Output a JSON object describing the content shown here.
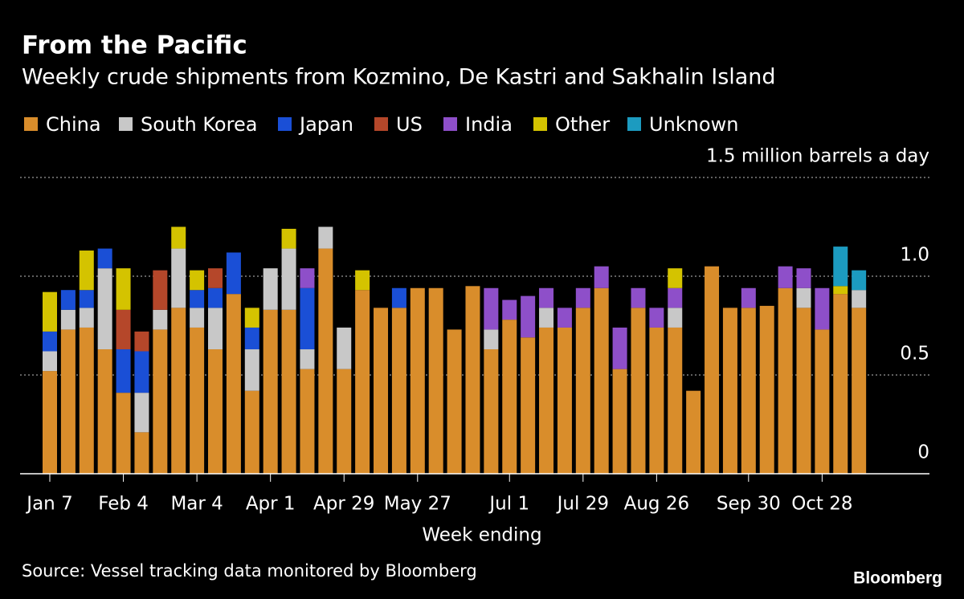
{
  "chart_data": {
    "type": "stacked-bar",
    "title": "From the Pacific",
    "subtitle": "Weekly crude shipments from Kozmino, De Kastri and Sakhalin Island",
    "x_label": "Week ending",
    "source": "Source: Vessel tracking data monitored by Bloomberg",
    "logo": "Bloomberg",
    "categories": [
      "Jan 7",
      null,
      null,
      null,
      "Feb 4",
      null,
      null,
      null,
      "Mar 4",
      null,
      null,
      null,
      "Apr 1",
      null,
      null,
      null,
      "Apr 29",
      null,
      null,
      null,
      "May 27",
      null,
      null,
      null,
      null,
      "Jul 1",
      null,
      null,
      null,
      "Jul 29",
      null,
      null,
      null,
      "Aug 26",
      null,
      null,
      null,
      null,
      "Sep 30",
      null,
      null,
      null,
      "Oct 28",
      null,
      null
    ],
    "ylim": [
      0,
      1.5
    ],
    "yticks": [
      0,
      0.5,
      {
        "value": 1,
        "label": "1.0"
      },
      {
        "value": 1.5,
        "label": "1.5 million barrels a day"
      }
    ],
    "grid": true,
    "series": [
      {
        "name": "China",
        "color": "#d98d2b",
        "values": [
          0.52,
          0.73,
          0.74,
          0.63,
          0.41,
          0.21,
          0.73,
          0.84,
          0.74,
          0.63,
          0.91,
          0.42,
          0.83,
          0.83,
          0.53,
          1.14,
          0.53,
          0.93,
          0.84,
          0.84,
          0.94,
          0.94,
          0.73,
          0.95,
          0.63,
          0.78,
          0.69,
          0.74,
          0.74,
          0.84,
          0.94,
          0.53,
          0.84,
          0.74,
          0.74,
          0.42,
          1.05,
          0.84,
          0.84,
          0.85,
          0.94,
          0.84,
          0.73,
          0.91,
          0.84
        ]
      },
      {
        "name": "South Korea",
        "color": "#c8c8c8",
        "values": [
          0.1,
          0.1,
          0.1,
          0.41,
          0,
          0.2,
          0.1,
          0.3,
          0.1,
          0.21,
          0,
          0.21,
          0.21,
          0.31,
          0.1,
          0.11,
          0.21,
          0,
          0,
          0,
          0,
          0,
          0,
          0,
          0.1,
          0,
          0,
          0.1,
          0,
          0,
          0,
          0,
          0,
          0,
          0.1,
          0,
          0,
          0,
          0,
          0,
          0,
          0.1,
          0,
          0,
          0.09
        ]
      },
      {
        "name": "Japan",
        "color": "#1a4fd6",
        "values": [
          0.1,
          0.1,
          0.09,
          0.1,
          0.22,
          0.21,
          0,
          0,
          0.09,
          0.1,
          0.21,
          0.11,
          0,
          0,
          0.31,
          0,
          0,
          0,
          0,
          0.1,
          0,
          0,
          0,
          0,
          0,
          0,
          0,
          0,
          0,
          0,
          0,
          0,
          0,
          0,
          0,
          0,
          0,
          0,
          0,
          0,
          0,
          0,
          0,
          0,
          0
        ]
      },
      {
        "name": "US",
        "color": "#b5472a",
        "values": [
          0,
          0,
          0,
          0,
          0.2,
          0.1,
          0.2,
          0,
          0,
          0.1,
          0,
          0,
          0,
          0,
          0,
          0,
          0,
          0,
          0,
          0,
          0,
          0,
          0,
          0,
          0,
          0,
          0,
          0,
          0,
          0,
          0,
          0,
          0,
          0,
          0,
          0,
          0,
          0,
          0,
          0,
          0,
          0,
          0,
          0,
          0
        ]
      },
      {
        "name": "India",
        "color": "#8e4fc9",
        "values": [
          0,
          0,
          0,
          0,
          0,
          0,
          0,
          0,
          0,
          0,
          0,
          0,
          0,
          0,
          0.1,
          0,
          0,
          0,
          0,
          0,
          0,
          0,
          0,
          0,
          0.21,
          0.1,
          0.21,
          0.1,
          0.1,
          0.1,
          0.11,
          0.21,
          0.1,
          0.1,
          0.1,
          0,
          0,
          0,
          0.1,
          0,
          0.11,
          0.1,
          0.21,
          0,
          0
        ]
      },
      {
        "name": "Other",
        "color": "#d4c300",
        "values": [
          0.2,
          0,
          0.2,
          0,
          0.21,
          0,
          0,
          0.11,
          0.1,
          0,
          0,
          0.1,
          0,
          0.1,
          0,
          0,
          0,
          0.1,
          0,
          0,
          0,
          0,
          0,
          0,
          0,
          0,
          0,
          0,
          0,
          0,
          0,
          0,
          0,
          0,
          0.1,
          0,
          0,
          0,
          0,
          0,
          0,
          0,
          0,
          0.04,
          0
        ]
      },
      {
        "name": "Unknown",
        "color": "#1c9bc0",
        "values": [
          0,
          0,
          0,
          0,
          0,
          0,
          0,
          0,
          0,
          0,
          0,
          0,
          0,
          0,
          0,
          0,
          0,
          0,
          0,
          0,
          0,
          0,
          0,
          0,
          0,
          0,
          0,
          0,
          0,
          0,
          0,
          0,
          0,
          0,
          0,
          0,
          0,
          0,
          0,
          0,
          0,
          0,
          0,
          0.2,
          0.1
        ]
      }
    ]
  }
}
